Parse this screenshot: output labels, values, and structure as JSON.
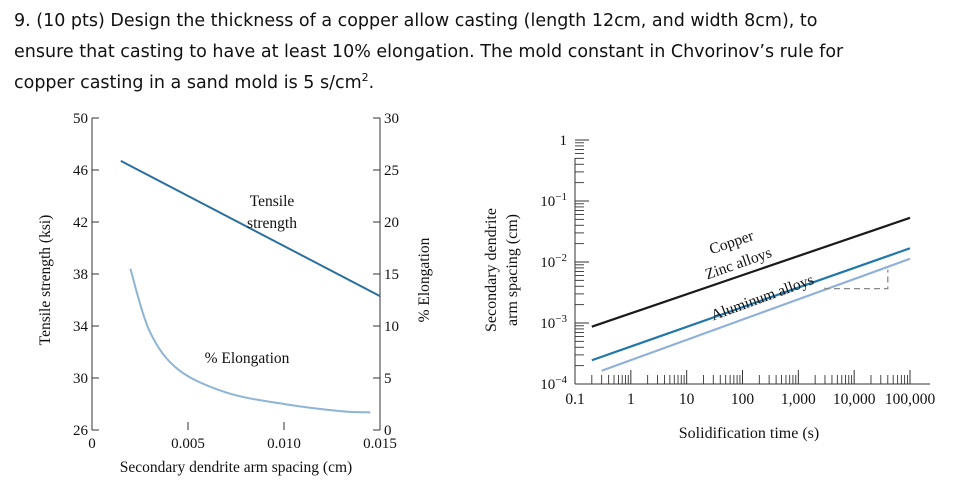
{
  "problem": {
    "line1": "9. (10 pts) Design the thickness of a copper allow casting (length 12cm, and width 8cm), to",
    "line2": "ensure that casting to have at least 10% elongation. The mold constant in Chvorinov’s rule  for",
    "line3_main": "copper casting in a sand mold is 5 s/cm",
    "line3_sup": "2",
    "line3_end": "."
  },
  "chart_data": [
    {
      "type": "line",
      "xlabel": "Secondary dendrite arm spacing (cm)",
      "ylabel": "Tensile strength (ksi)",
      "y2label": "% Elongation",
      "xlim": [
        0,
        0.015
      ],
      "ylim": [
        26,
        50
      ],
      "y2lim": [
        0,
        30
      ],
      "x_ticks": [
        "0",
        "0.005",
        "0.010",
        "0.015"
      ],
      "y_ticks": [
        "26",
        "30",
        "34",
        "38",
        "42",
        "46",
        "50"
      ],
      "y2_ticks": [
        "0",
        "5",
        "10",
        "15",
        "20",
        "25",
        "30"
      ],
      "series": [
        {
          "name": "Tensile strength",
          "label_lines": [
            "Tensile",
            "strength"
          ],
          "axis": "left",
          "color": "#2b6f9e",
          "points": [
            [
              0.0015,
              46.7
            ],
            [
              0.015,
              36.3
            ]
          ]
        },
        {
          "name": "% Elongation",
          "axis": "right",
          "color": "#8eb4d6",
          "points": [
            [
              0.002,
              15.5
            ],
            [
              0.003,
              9.5
            ],
            [
              0.0045,
              5.8
            ],
            [
              0.007,
              3.6
            ],
            [
              0.01,
              2.5
            ],
            [
              0.013,
              1.8
            ],
            [
              0.0145,
              1.7
            ]
          ]
        }
      ]
    },
    {
      "type": "line",
      "xscale": "log",
      "yscale": "log",
      "xlabel": "Solidification time (s)",
      "ylabel_lines": [
        "Secondary dendrite",
        "arm spacing (cm)"
      ],
      "xlim": [
        0.1,
        100000
      ],
      "ylim": [
        0.0001,
        1
      ],
      "x_ticks": [
        "0.1",
        "1",
        "10",
        "100",
        "1,000",
        "10,000",
        "100,000"
      ],
      "y_ticks": [
        {
          "base": "1",
          "exp": ""
        },
        {
          "base": "10",
          "exp": "−1"
        },
        {
          "base": "10",
          "exp": "−2"
        },
        {
          "base": "10",
          "exp": "−3"
        },
        {
          "base": "10",
          "exp": "−4"
        }
      ],
      "series": [
        {
          "name": "Copper",
          "color": "#1a1a1a",
          "points": [
            [
              0.2,
              0.00087
            ],
            [
              100000,
              0.053
            ]
          ]
        },
        {
          "name": "Zinc alloys",
          "color": "#2277aa",
          "points": [
            [
              0.2,
              0.000245
            ],
            [
              100000,
              0.0168
            ]
          ]
        },
        {
          "name": "Aluminum alloys",
          "color": "#8fb0d8",
          "points": [
            [
              0.3,
              0.000165
            ],
            [
              100000,
              0.0113
            ]
          ]
        }
      ],
      "annotation": "dashed reference bracket near Aluminum alloys line"
    }
  ]
}
